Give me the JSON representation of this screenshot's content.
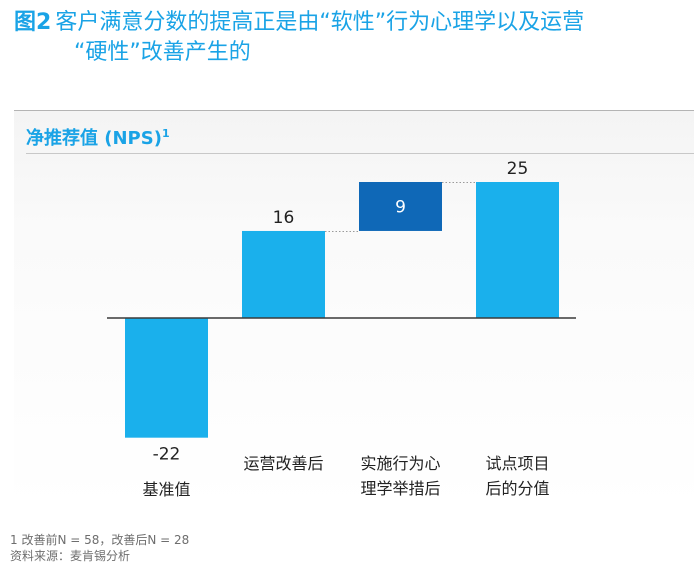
{
  "figure": {
    "number": "图2",
    "title_line1": "客户满意分数的提高正是由“软性”行为心理学以及运营",
    "title_line2": "“硬性”改善产生的"
  },
  "chart_data": {
    "type": "waterfall",
    "title": "净推荐值 (NPS)",
    "title_superscript": "1",
    "categories": [
      {
        "line1": "基准值",
        "line2": ""
      },
      {
        "line1": "运营改善后",
        "line2": ""
      },
      {
        "line1": "实施行为心",
        "line2": "理学举措后"
      },
      {
        "line1": "试点项目",
        "line2": "后的分值"
      }
    ],
    "values": [
      -22,
      16,
      9,
      25
    ],
    "kinds": [
      "total",
      "total",
      "increment",
      "total"
    ],
    "ylim": [
      -30,
      30
    ],
    "colors": {
      "total": "#1ab0ec",
      "increment": "#0f68b7",
      "label_on_increment": "#ffffff"
    }
  },
  "footnotes": {
    "note1": "1 改善前N = 58，改善后N = 28",
    "source": "资料来源：麦肯锡分析"
  }
}
